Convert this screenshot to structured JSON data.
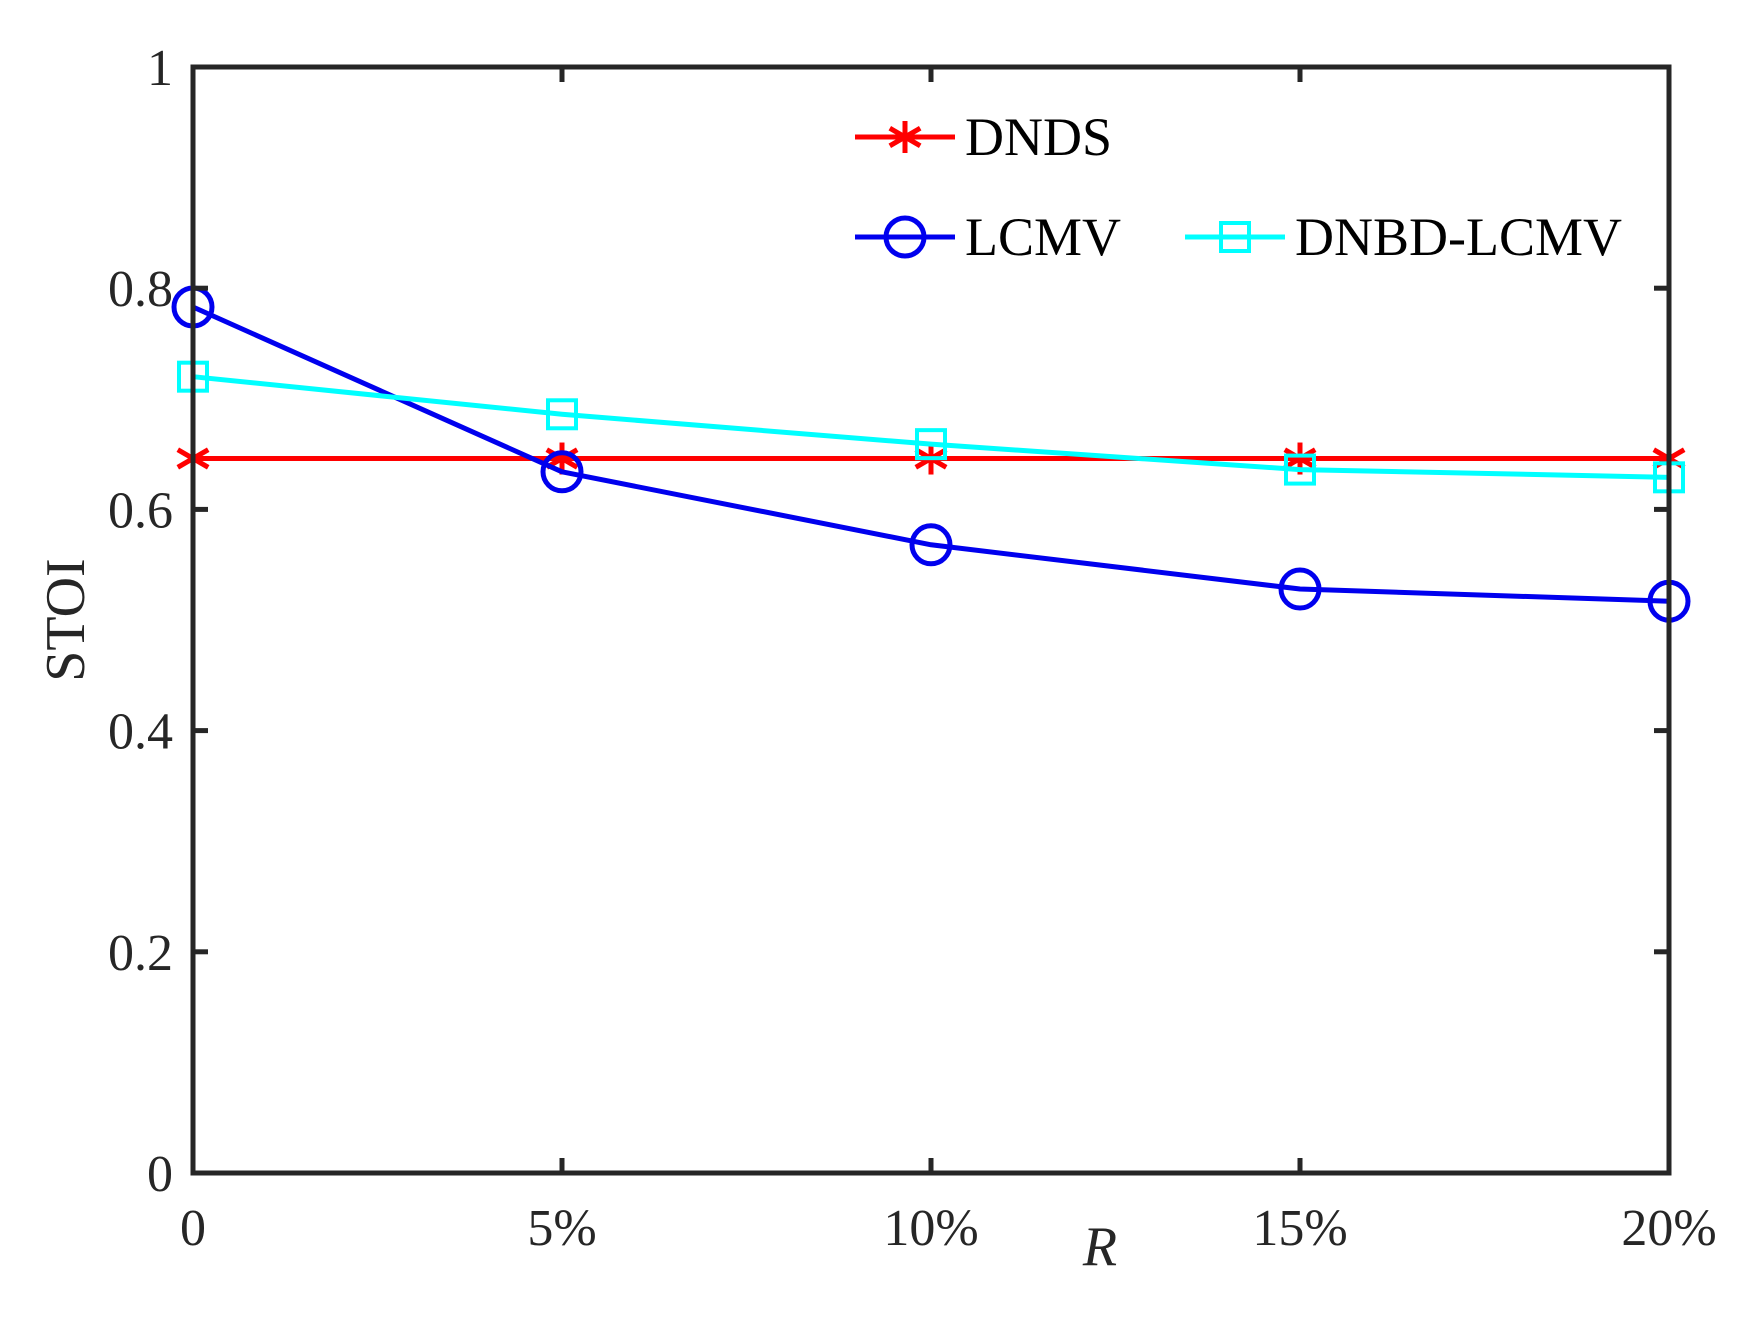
{
  "chart_data": {
    "type": "line",
    "title": "",
    "xlabel": "R",
    "ylabel": "STOI",
    "categories": [
      "0",
      "5%",
      "10%",
      "15%",
      "20%"
    ],
    "x": [
      0,
      5,
      10,
      15,
      20
    ],
    "xlim": [
      0,
      20
    ],
    "ylim": [
      0,
      1
    ],
    "yticks": [
      "0",
      "0.2",
      "0.4",
      "0.6",
      "0.8",
      "1"
    ],
    "ytick_values": [
      0,
      0.2,
      0.4,
      0.6,
      0.8,
      1
    ],
    "grid": false,
    "legend_position": "top-right",
    "series": [
      {
        "name": "DNDS",
        "color": "#ff0000",
        "marker": "asterisk",
        "values": [
          0.646,
          0.646,
          0.646,
          0.646,
          0.646
        ]
      },
      {
        "name": "LCMV",
        "color": "#0000ee",
        "marker": "circle",
        "values": [
          0.783,
          0.634,
          0.568,
          0.528,
          0.517
        ]
      },
      {
        "name": "DNBD-LCMV",
        "color": "#00ffff",
        "marker": "square",
        "values": [
          0.72,
          0.686,
          0.659,
          0.636,
          0.629
        ]
      }
    ]
  }
}
